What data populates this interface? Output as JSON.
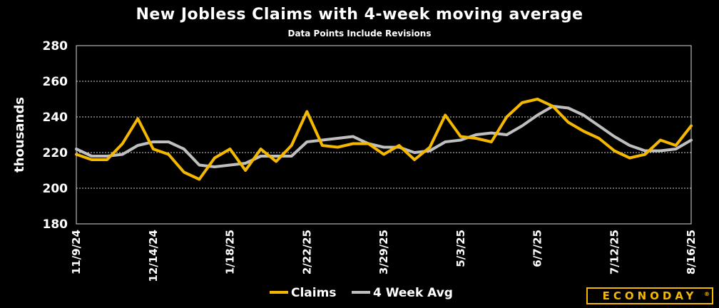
{
  "chart_data": {
    "type": "line",
    "title": "New Jobless Claims with 4-week moving average",
    "subtitle": "Data Points Include Revisions",
    "ylabel": "thousands",
    "xlabel": "",
    "ylim": [
      180,
      280
    ],
    "yticks": [
      180,
      200,
      220,
      240,
      260,
      280
    ],
    "grid": true,
    "legend_position": "bottom",
    "x": [
      "11/9/24",
      "11/16/24",
      "11/23/24",
      "11/30/24",
      "12/7/24",
      "12/14/24",
      "12/21/24",
      "12/28/24",
      "1/4/25",
      "1/11/25",
      "1/18/25",
      "1/25/25",
      "2/1/25",
      "2/8/25",
      "2/15/25",
      "2/22/25",
      "3/1/25",
      "3/8/25",
      "3/15/25",
      "3/22/25",
      "3/29/25",
      "4/5/25",
      "4/12/25",
      "4/19/25",
      "4/26/25",
      "5/3/25",
      "5/10/25",
      "5/17/25",
      "5/24/25",
      "5/31/25",
      "6/7/25",
      "6/14/25",
      "6/21/25",
      "6/28/25",
      "7/5/25",
      "7/12/25",
      "7/19/25",
      "7/26/25",
      "8/2/25",
      "8/9/25",
      "8/16/25"
    ],
    "xtick_labels": [
      "11/9/24",
      "12/14/24",
      "1/18/25",
      "2/22/25",
      "3/29/25",
      "5/3/25",
      "6/7/25",
      "7/12/25",
      "8/16/25"
    ],
    "series": [
      {
        "name": "Claims",
        "color": "#f5b800",
        "values": [
          219,
          216,
          216,
          225,
          239,
          222,
          219,
          209,
          205,
          217,
          222,
          210,
          222,
          215,
          224,
          243,
          224,
          223,
          225,
          225,
          219,
          224,
          216,
          223,
          241,
          229,
          228,
          226,
          240,
          248,
          250,
          246,
          237,
          232,
          228,
          221,
          217,
          219,
          227,
          224,
          235
        ]
      },
      {
        "name": "4 Week Avg",
        "color": "#bfbfbf",
        "values": [
          222,
          218,
          218,
          219,
          224,
          226,
          226,
          222,
          213,
          212,
          213,
          214,
          218,
          218,
          218,
          226,
          227,
          228,
          229,
          225,
          223,
          223,
          220,
          221,
          226,
          227,
          230,
          231,
          230,
          235,
          241,
          246,
          245,
          241,
          235,
          229,
          224,
          221,
          221,
          222,
          227
        ]
      }
    ]
  },
  "brand": {
    "name": "ECONODAY",
    "mark": "®"
  },
  "colors": {
    "background": "#000000",
    "accent": "#f5b800"
  }
}
